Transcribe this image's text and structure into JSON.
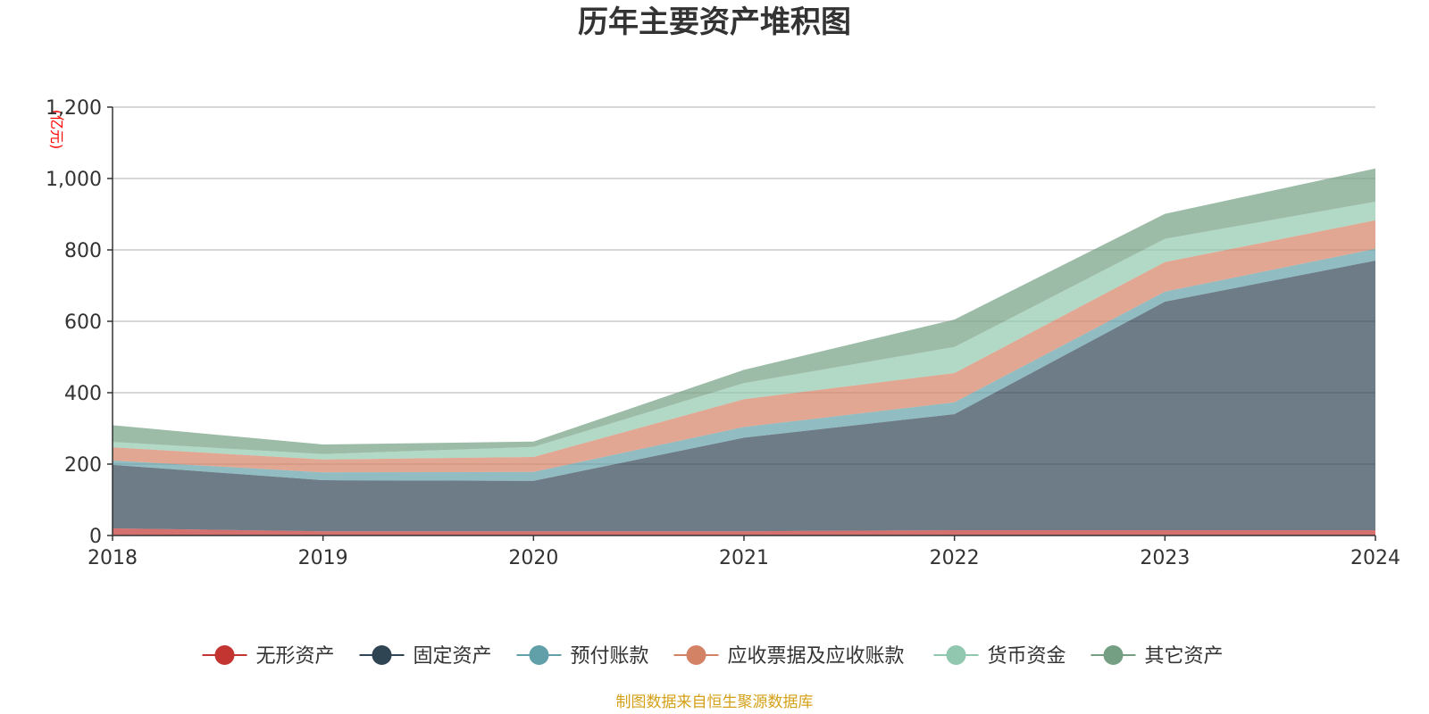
{
  "chart_data": {
    "type": "area",
    "stacked": true,
    "title": "历年主要资产堆积图",
    "ylabel": "(亿元)",
    "x": [
      "2018",
      "2019",
      "2020",
      "2021",
      "2022",
      "2023",
      "2024"
    ],
    "ylim": [
      0,
      1200
    ],
    "yticks": [
      "0",
      "200",
      "400",
      "600",
      "800",
      "1,000",
      "1,200"
    ],
    "grid": true,
    "legend_position": "bottom",
    "series": [
      {
        "name": "无形资产",
        "color": "#c23531",
        "values": [
          20,
          12,
          12,
          12,
          15,
          15,
          15
        ]
      },
      {
        "name": "固定资产",
        "color": "#2f4554",
        "values": [
          178,
          143,
          141,
          262,
          325,
          640,
          755
        ]
      },
      {
        "name": "预付账款",
        "color": "#61a0a8",
        "values": [
          12,
          22,
          25,
          30,
          33,
          28,
          33
        ]
      },
      {
        "name": "应收票据及应收账款",
        "color": "#d48265",
        "values": [
          37,
          36,
          42,
          78,
          82,
          83,
          80
        ]
      },
      {
        "name": "货币资金",
        "color": "#91c7ae",
        "values": [
          15,
          15,
          28,
          45,
          73,
          65,
          52
        ]
      },
      {
        "name": "其它资产",
        "color": "#749f83",
        "values": [
          47,
          27,
          15,
          37,
          77,
          70,
          93
        ]
      }
    ]
  },
  "source_note": "制图数据来自恒生聚源数据库"
}
